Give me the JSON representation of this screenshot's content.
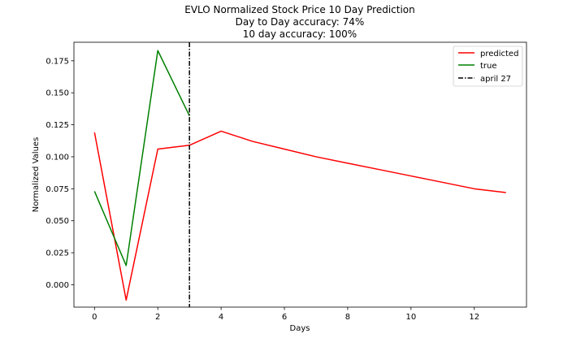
{
  "chart_data": {
    "type": "line",
    "title": [
      "EVLO Normalized Stock Price 10 Day Prediction",
      "Day to Day accuracy: 74%",
      "10 day accuracy: 100%"
    ],
    "xlabel": "Days",
    "ylabel": "Normalized Values",
    "xlim": [
      -0.65,
      13.65
    ],
    "ylim": [
      -0.0175,
      0.1895
    ],
    "xticks": [
      0,
      2,
      4,
      6,
      8,
      10,
      12
    ],
    "yticks": [
      0.0,
      0.025,
      0.05,
      0.075,
      0.1,
      0.125,
      0.15,
      0.175
    ],
    "ytick_labels": [
      "0.000",
      "0.025",
      "0.050",
      "0.075",
      "0.100",
      "0.125",
      "0.150",
      "0.175"
    ],
    "grid": false,
    "legend_position": "top-right",
    "series": [
      {
        "name": "predicted",
        "color": "#ff0000",
        "x": [
          0,
          1,
          2,
          3,
          4,
          5,
          6,
          7,
          8,
          9,
          10,
          11,
          12,
          13
        ],
        "y": [
          0.119,
          -0.012,
          0.106,
          0.109,
          0.12,
          0.112,
          0.106,
          0.1,
          0.095,
          0.09,
          0.085,
          0.08,
          0.075,
          0.072
        ]
      },
      {
        "name": "true",
        "color": "#008000",
        "x": [
          0,
          1,
          2,
          3
        ],
        "y": [
          0.073,
          0.015,
          0.183,
          0.132
        ]
      }
    ],
    "vline": {
      "name": "april 27",
      "x": 3,
      "color": "#000000",
      "style": "dash-dot"
    }
  }
}
